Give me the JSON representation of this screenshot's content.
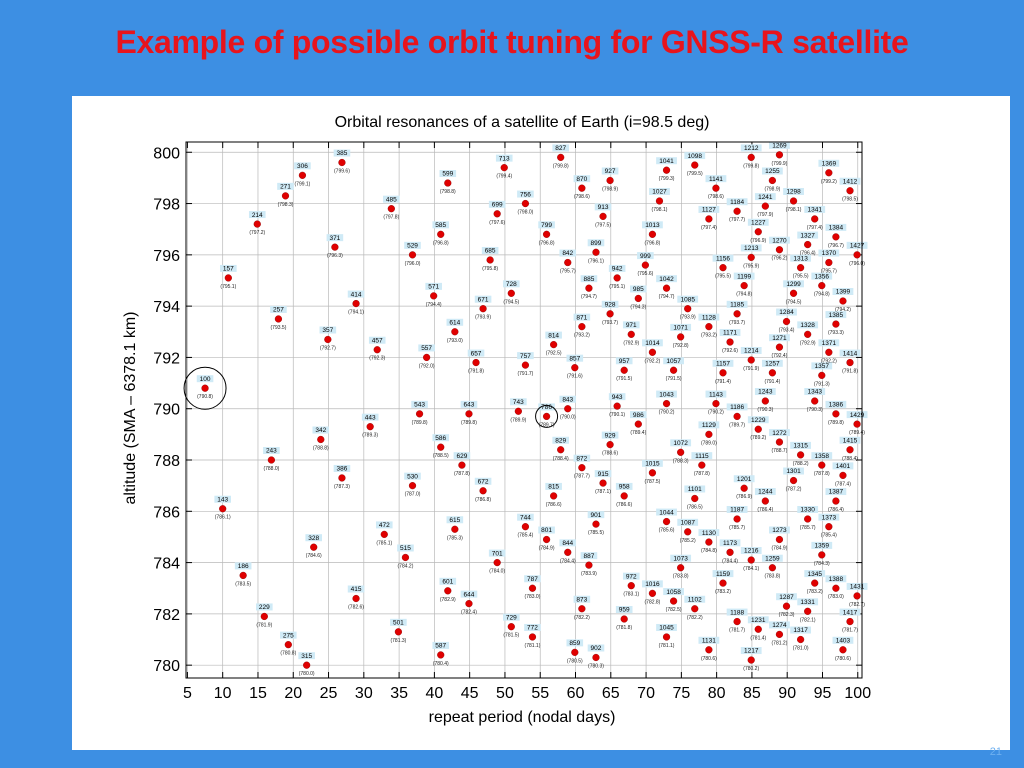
{
  "slide": {
    "title": "Example of possible orbit tuning for GNSS-R satellite",
    "page_number": "21"
  },
  "colors": {
    "background": "#3d8fe3",
    "title": "#e8141c",
    "point": "#e00000",
    "label_box": "#cfeaf6",
    "grid": "#b9b9b9"
  },
  "chart_data": {
    "type": "scatter",
    "title": "Orbital resonances of a satellite of Earth (i=98.5 deg)",
    "xlabel": "repeat period (nodal days)",
    "ylabel": "altitude (SMA – 6378.1 km)",
    "xlim": [
      4.8,
      100.6
    ],
    "ylim": [
      779.5,
      800.4
    ],
    "xticks": [
      5,
      10,
      15,
      20,
      25,
      30,
      35,
      40,
      45,
      50,
      55,
      60,
      65,
      70,
      75,
      80,
      85,
      90,
      95,
      100
    ],
    "yticks": [
      780,
      782,
      784,
      786,
      788,
      790,
      792,
      794,
      796,
      798,
      800
    ],
    "grid": true,
    "highlighted": [
      {
        "label": "100",
        "x": 7.5,
        "y": 790.8
      },
      {
        "label": "786",
        "x": 55.9,
        "y": 789.7
      }
    ],
    "points": [
      {
        "label": "100",
        "x": 7.5,
        "y": 790.8
      },
      {
        "label": "143",
        "x": 10.0,
        "y": 786.1
      },
      {
        "label": "157",
        "x": 10.8,
        "y": 795.1
      },
      {
        "label": "186",
        "x": 12.9,
        "y": 783.5
      },
      {
        "label": "214",
        "x": 14.9,
        "y": 797.2
      },
      {
        "label": "229",
        "x": 15.9,
        "y": 781.9
      },
      {
        "label": "243",
        "x": 16.9,
        "y": 788.0
      },
      {
        "label": "257",
        "x": 17.9,
        "y": 793.5
      },
      {
        "label": "271",
        "x": 18.9,
        "y": 798.3
      },
      {
        "label": "275",
        "x": 19.3,
        "y": 780.8
      },
      {
        "label": "306",
        "x": 21.3,
        "y": 799.1
      },
      {
        "label": "315",
        "x": 21.9,
        "y": 780.0
      },
      {
        "label": "328",
        "x": 22.9,
        "y": 784.6
      },
      {
        "label": "342",
        "x": 23.9,
        "y": 788.8
      },
      {
        "label": "357",
        "x": 24.9,
        "y": 792.7
      },
      {
        "label": "371",
        "x": 25.9,
        "y": 796.3
      },
      {
        "label": "385",
        "x": 26.9,
        "y": 799.6
      },
      {
        "label": "386",
        "x": 26.9,
        "y": 787.3
      },
      {
        "label": "414",
        "x": 28.9,
        "y": 794.1
      },
      {
        "label": "415",
        "x": 28.9,
        "y": 782.6
      },
      {
        "label": "443",
        "x": 30.9,
        "y": 789.3
      },
      {
        "label": "457",
        "x": 31.9,
        "y": 792.3
      },
      {
        "label": "472",
        "x": 32.9,
        "y": 785.1
      },
      {
        "label": "485",
        "x": 33.9,
        "y": 797.8
      },
      {
        "label": "501",
        "x": 34.9,
        "y": 781.3
      },
      {
        "label": "515",
        "x": 35.9,
        "y": 784.2
      },
      {
        "label": "529",
        "x": 36.9,
        "y": 796.0
      },
      {
        "label": "530",
        "x": 36.9,
        "y": 787.0
      },
      {
        "label": "543",
        "x": 37.9,
        "y": 789.8
      },
      {
        "label": "557",
        "x": 38.9,
        "y": 792.0
      },
      {
        "label": "571",
        "x": 39.9,
        "y": 794.4
      },
      {
        "label": "585",
        "x": 40.9,
        "y": 796.8
      },
      {
        "label": "586",
        "x": 40.9,
        "y": 788.5
      },
      {
        "label": "587",
        "x": 40.9,
        "y": 780.4
      },
      {
        "label": "599",
        "x": 41.9,
        "y": 798.8
      },
      {
        "label": "601",
        "x": 41.9,
        "y": 782.9
      },
      {
        "label": "614",
        "x": 42.9,
        "y": 793.0
      },
      {
        "label": "615",
        "x": 42.9,
        "y": 785.3
      },
      {
        "label": "629",
        "x": 43.9,
        "y": 787.8
      },
      {
        "label": "643",
        "x": 44.9,
        "y": 789.8
      },
      {
        "label": "644",
        "x": 44.9,
        "y": 782.4
      },
      {
        "label": "657",
        "x": 45.9,
        "y": 791.8
      },
      {
        "label": "671",
        "x": 46.9,
        "y": 793.9
      },
      {
        "label": "672",
        "x": 46.9,
        "y": 786.8
      },
      {
        "label": "685",
        "x": 47.9,
        "y": 795.8
      },
      {
        "label": "699",
        "x": 48.9,
        "y": 797.6
      },
      {
        "label": "701",
        "x": 48.9,
        "y": 784.0
      },
      {
        "label": "713",
        "x": 49.9,
        "y": 799.4
      },
      {
        "label": "728",
        "x": 50.9,
        "y": 794.5
      },
      {
        "label": "729",
        "x": 50.9,
        "y": 781.5
      },
      {
        "label": "743",
        "x": 51.9,
        "y": 789.9
      },
      {
        "label": "744",
        "x": 52.9,
        "y": 785.4
      },
      {
        "label": "756",
        "x": 52.9,
        "y": 798.0
      },
      {
        "label": "757",
        "x": 52.9,
        "y": 791.7
      },
      {
        "label": "772",
        "x": 53.9,
        "y": 781.1
      },
      {
        "label": "786",
        "x": 55.9,
        "y": 789.7
      },
      {
        "label": "787",
        "x": 53.9,
        "y": 783.0
      },
      {
        "label": "799",
        "x": 55.9,
        "y": 796.8
      },
      {
        "label": "801",
        "x": 55.9,
        "y": 784.9
      },
      {
        "label": "814",
        "x": 56.9,
        "y": 792.5
      },
      {
        "label": "815",
        "x": 56.9,
        "y": 786.6
      },
      {
        "label": "827",
        "x": 57.9,
        "y": 799.8
      },
      {
        "label": "829",
        "x": 57.9,
        "y": 788.4
      },
      {
        "label": "842",
        "x": 58.9,
        "y": 795.7
      },
      {
        "label": "843",
        "x": 58.9,
        "y": 790.0
      },
      {
        "label": "844",
        "x": 58.9,
        "y": 784.4
      },
      {
        "label": "857",
        "x": 59.9,
        "y": 791.6
      },
      {
        "label": "859",
        "x": 59.9,
        "y": 780.5
      },
      {
        "label": "870",
        "x": 60.9,
        "y": 798.6
      },
      {
        "label": "871",
        "x": 60.9,
        "y": 793.2
      },
      {
        "label": "872",
        "x": 60.9,
        "y": 787.7
      },
      {
        "label": "873",
        "x": 60.9,
        "y": 782.2
      },
      {
        "label": "885",
        "x": 61.9,
        "y": 794.7
      },
      {
        "label": "887",
        "x": 61.9,
        "y": 783.9
      },
      {
        "label": "899",
        "x": 62.9,
        "y": 796.1
      },
      {
        "label": "901",
        "x": 62.9,
        "y": 785.5
      },
      {
        "label": "902",
        "x": 62.9,
        "y": 780.3
      },
      {
        "label": "913",
        "x": 63.9,
        "y": 797.5
      },
      {
        "label": "915",
        "x": 63.9,
        "y": 787.1
      },
      {
        "label": "927",
        "x": 64.9,
        "y": 798.9
      },
      {
        "label": "928",
        "x": 64.9,
        "y": 793.7
      },
      {
        "label": "929",
        "x": 64.9,
        "y": 788.6
      },
      {
        "label": "942",
        "x": 65.9,
        "y": 795.1
      },
      {
        "label": "943",
        "x": 65.9,
        "y": 790.1
      },
      {
        "label": "957",
        "x": 66.9,
        "y": 791.5
      },
      {
        "label": "958",
        "x": 66.9,
        "y": 786.6
      },
      {
        "label": "959",
        "x": 66.9,
        "y": 781.8
      },
      {
        "label": "971",
        "x": 67.9,
        "y": 792.9
      },
      {
        "label": "972",
        "x": 67.9,
        "y": 783.1
      },
      {
        "label": "985",
        "x": 68.9,
        "y": 794.3
      },
      {
        "label": "986",
        "x": 68.9,
        "y": 789.4
      },
      {
        "label": "999",
        "x": 69.9,
        "y": 795.6
      },
      {
        "label": "1013",
        "x": 70.9,
        "y": 796.8
      },
      {
        "label": "1014",
        "x": 70.9,
        "y": 792.2
      },
      {
        "label": "1015",
        "x": 70.9,
        "y": 787.5
      },
      {
        "label": "1016",
        "x": 70.9,
        "y": 782.8
      },
      {
        "label": "1027",
        "x": 71.9,
        "y": 798.1
      },
      {
        "label": "1041",
        "x": 72.9,
        "y": 799.3
      },
      {
        "label": "1042",
        "x": 72.9,
        "y": 794.7
      },
      {
        "label": "1043",
        "x": 72.9,
        "y": 790.2
      },
      {
        "label": "1044",
        "x": 72.9,
        "y": 785.6
      },
      {
        "label": "1045",
        "x": 72.9,
        "y": 781.1
      },
      {
        "label": "1057",
        "x": 73.9,
        "y": 791.5
      },
      {
        "label": "1058",
        "x": 73.9,
        "y": 782.5
      },
      {
        "label": "1071",
        "x": 74.9,
        "y": 792.8
      },
      {
        "label": "1072",
        "x": 74.9,
        "y": 788.3
      },
      {
        "label": "1073",
        "x": 74.9,
        "y": 783.8
      },
      {
        "label": "1085",
        "x": 75.9,
        "y": 793.9
      },
      {
        "label": "1087",
        "x": 75.9,
        "y": 785.2
      },
      {
        "label": "1098",
        "x": 76.9,
        "y": 799.5
      },
      {
        "label": "1101",
        "x": 76.9,
        "y": 786.5
      },
      {
        "label": "1102",
        "x": 76.9,
        "y": 782.2
      },
      {
        "label": "1115",
        "x": 77.9,
        "y": 787.8
      },
      {
        "label": "1127",
        "x": 78.9,
        "y": 797.4
      },
      {
        "label": "1128",
        "x": 78.9,
        "y": 793.2
      },
      {
        "label": "1129",
        "x": 78.9,
        "y": 789.0
      },
      {
        "label": "1130",
        "x": 78.9,
        "y": 784.8
      },
      {
        "label": "1131",
        "x": 78.9,
        "y": 780.6
      },
      {
        "label": "1141",
        "x": 79.9,
        "y": 798.6
      },
      {
        "label": "1143",
        "x": 79.9,
        "y": 790.2
      },
      {
        "label": "1156",
        "x": 80.9,
        "y": 795.5
      },
      {
        "label": "1157",
        "x": 80.9,
        "y": 791.4
      },
      {
        "label": "1159",
        "x": 80.9,
        "y": 783.2
      },
      {
        "label": "1171",
        "x": 81.9,
        "y": 792.6
      },
      {
        "label": "1173",
        "x": 81.9,
        "y": 784.4
      },
      {
        "label": "1184",
        "x": 82.9,
        "y": 797.7
      },
      {
        "label": "1185",
        "x": 82.9,
        "y": 793.7
      },
      {
        "label": "1186",
        "x": 82.9,
        "y": 789.7
      },
      {
        "label": "1187",
        "x": 82.9,
        "y": 785.7
      },
      {
        "label": "1188",
        "x": 82.9,
        "y": 781.7
      },
      {
        "label": "1199",
        "x": 83.9,
        "y": 794.8
      },
      {
        "label": "1201",
        "x": 83.9,
        "y": 786.9
      },
      {
        "label": "1212",
        "x": 84.9,
        "y": 799.8
      },
      {
        "label": "1213",
        "x": 84.9,
        "y": 795.9
      },
      {
        "label": "1214",
        "x": 84.9,
        "y": 791.9
      },
      {
        "label": "1216",
        "x": 84.9,
        "y": 784.1
      },
      {
        "label": "1217",
        "x": 84.9,
        "y": 780.2
      },
      {
        "label": "1227",
        "x": 85.9,
        "y": 796.9
      },
      {
        "label": "1229",
        "x": 85.9,
        "y": 789.2
      },
      {
        "label": "1231",
        "x": 85.9,
        "y": 781.4
      },
      {
        "label": "1241",
        "x": 86.9,
        "y": 797.9
      },
      {
        "label": "1243",
        "x": 86.9,
        "y": 790.3
      },
      {
        "label": "1244",
        "x": 86.9,
        "y": 786.4
      },
      {
        "label": "1255",
        "x": 87.9,
        "y": 798.9
      },
      {
        "label": "1257",
        "x": 87.9,
        "y": 791.4
      },
      {
        "label": "1259",
        "x": 87.9,
        "y": 783.8
      },
      {
        "label": "1269",
        "x": 88.9,
        "y": 799.9
      },
      {
        "label": "1270",
        "x": 88.9,
        "y": 796.2
      },
      {
        "label": "1271",
        "x": 88.9,
        "y": 792.4
      },
      {
        "label": "1272",
        "x": 88.9,
        "y": 788.7
      },
      {
        "label": "1273",
        "x": 88.9,
        "y": 784.9
      },
      {
        "label": "1274",
        "x": 88.9,
        "y": 781.2
      },
      {
        "label": "1284",
        "x": 89.9,
        "y": 793.4
      },
      {
        "label": "1287",
        "x": 89.9,
        "y": 782.3
      },
      {
        "label": "1298",
        "x": 90.9,
        "y": 798.1
      },
      {
        "label": "1299",
        "x": 90.9,
        "y": 794.5
      },
      {
        "label": "1301",
        "x": 90.9,
        "y": 787.2
      },
      {
        "label": "1313",
        "x": 91.9,
        "y": 795.5
      },
      {
        "label": "1315",
        "x": 91.9,
        "y": 788.2
      },
      {
        "label": "1317",
        "x": 91.9,
        "y": 781.0
      },
      {
        "label": "1327",
        "x": 92.9,
        "y": 796.4
      },
      {
        "label": "1328",
        "x": 92.9,
        "y": 792.9
      },
      {
        "label": "1330",
        "x": 92.9,
        "y": 785.7
      },
      {
        "label": "1331",
        "x": 92.9,
        "y": 782.1
      },
      {
        "label": "1341",
        "x": 93.9,
        "y": 797.4
      },
      {
        "label": "1343",
        "x": 93.9,
        "y": 790.3
      },
      {
        "label": "1345",
        "x": 93.9,
        "y": 783.2
      },
      {
        "label": "1356",
        "x": 94.9,
        "y": 794.8
      },
      {
        "label": "1357",
        "x": 94.9,
        "y": 791.3
      },
      {
        "label": "1358",
        "x": 94.9,
        "y": 787.8
      },
      {
        "label": "1359",
        "x": 94.9,
        "y": 784.3
      },
      {
        "label": "1369",
        "x": 95.9,
        "y": 799.2
      },
      {
        "label": "1370",
        "x": 95.9,
        "y": 795.7
      },
      {
        "label": "1371",
        "x": 95.9,
        "y": 792.2
      },
      {
        "label": "1373",
        "x": 95.9,
        "y": 785.4
      },
      {
        "label": "1384",
        "x": 96.9,
        "y": 796.7
      },
      {
        "label": "1385",
        "x": 96.9,
        "y": 793.3
      },
      {
        "label": "1386",
        "x": 96.9,
        "y": 789.8
      },
      {
        "label": "1387",
        "x": 96.9,
        "y": 786.4
      },
      {
        "label": "1388",
        "x": 96.9,
        "y": 783.0
      },
      {
        "label": "1399",
        "x": 97.9,
        "y": 794.2
      },
      {
        "label": "1401",
        "x": 97.9,
        "y": 787.4
      },
      {
        "label": "1403",
        "x": 97.9,
        "y": 780.6
      },
      {
        "label": "1412",
        "x": 98.9,
        "y": 798.5
      },
      {
        "label": "1414",
        "x": 98.9,
        "y": 791.8
      },
      {
        "label": "1415",
        "x": 98.9,
        "y": 788.4
      },
      {
        "label": "1417",
        "x": 98.9,
        "y": 781.7
      },
      {
        "label": "1427",
        "x": 99.9,
        "y": 796.0
      },
      {
        "label": "1429",
        "x": 99.9,
        "y": 789.4
      },
      {
        "label": "1431",
        "x": 99.9,
        "y": 782.7
      }
    ]
  }
}
